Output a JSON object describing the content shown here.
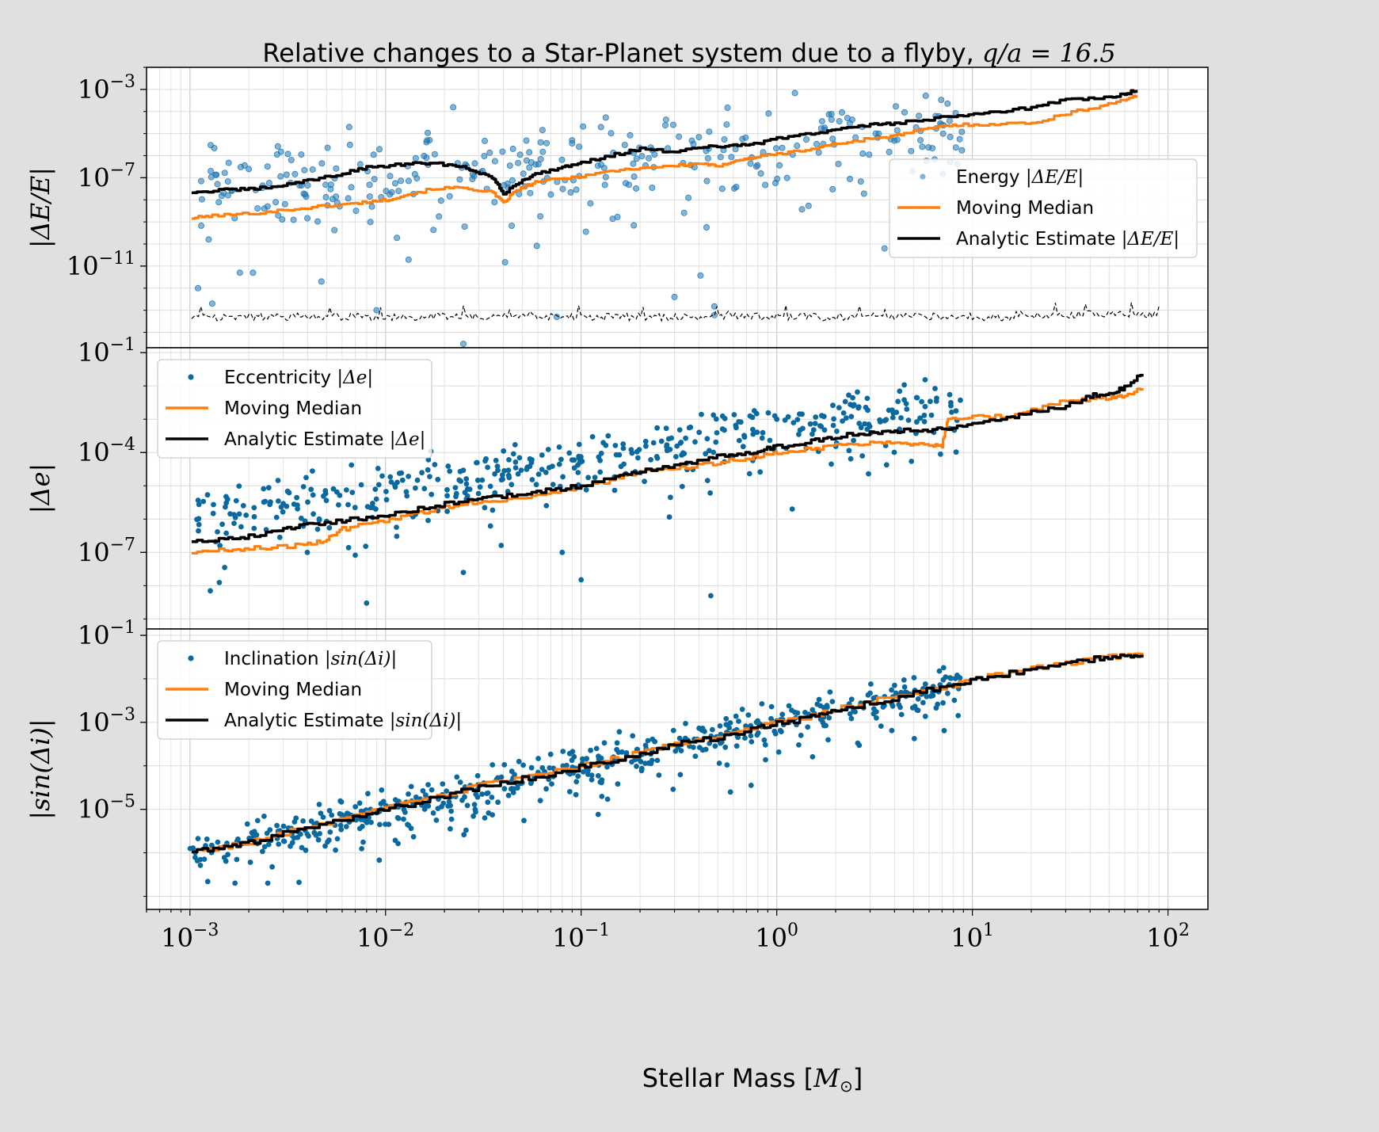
{
  "figure": {
    "title_text": "Relative changes to a Star-Planet system due to a flyby, ",
    "title_math": "q/a = 16.5",
    "xlabel_text": "Stellar Mass [",
    "xlabel_math": "M",
    "xlabel_sub": "⊙",
    "xlabel_end": "]",
    "xtick_labels": [
      {
        "base": "10",
        "exp": "−3"
      },
      {
        "base": "10",
        "exp": "−2"
      },
      {
        "base": "10",
        "exp": "−1"
      },
      {
        "base": "10",
        "exp": "0"
      },
      {
        "base": "10",
        "exp": "1"
      },
      {
        "base": "10",
        "exp": "2"
      }
    ],
    "colors": {
      "points": "#1f77b4",
      "points_dark": "#0a6aa0",
      "median": "#ff7f0e",
      "analytic": "#000000",
      "background": "#e0e0e0",
      "axes": "#ffffff",
      "grid": "#d0d0d0"
    }
  },
  "chart_data": [
    {
      "type": "scatter",
      "panel": "energy",
      "xscale": "log",
      "yscale": "log",
      "xlim": [
        0.0006,
        160
      ],
      "ylim": [
        2e-15,
        0.01
      ],
      "grid": true,
      "ylabel": "|ΔE/E|",
      "ytick_labels": [
        {
          "base": "10",
          "exp": "−3",
          "value": 0.001
        },
        {
          "base": "10",
          "exp": "−7",
          "value": 1e-07
        },
        {
          "base": "10",
          "exp": "−11",
          "value": 1e-11
        }
      ],
      "legend_placement": "center-right",
      "legend": [
        {
          "text": "Energy ",
          "math": "|ΔE/E|",
          "kind": "points"
        },
        {
          "text": "Moving Median",
          "math": "",
          "kind": "median"
        },
        {
          "text": "Analytic Estimate ",
          "math": "|ΔE/E|",
          "kind": "analytic"
        }
      ],
      "series": {
        "scatter": {
          "intercept": -5.5,
          "slope": 0.62,
          "spread": 1.6,
          "seed": 7,
          "count": 330,
          "alpha": 0.55,
          "outliers": [
            [
              0.0011,
              1e-12
            ],
            [
              0.0013,
              2e-13
            ],
            [
              0.0021,
              5e-12
            ],
            [
              0.0047,
              2e-12
            ],
            [
              0.009,
              1e-13
            ],
            [
              0.025,
              3e-15
            ],
            [
              0.075,
              5e-14
            ],
            [
              0.3,
              4e-13
            ],
            [
              0.48,
              1.5e-13
            ],
            [
              0.48,
              6e-14
            ],
            [
              0.0018,
              5e-12
            ]
          ]
        },
        "median": {
          "x": [
            0.00102,
            0.0013,
            0.002,
            0.003,
            0.0045,
            0.006,
            0.008,
            0.01,
            0.013,
            0.018,
            0.025,
            0.035,
            0.04,
            0.045,
            0.05,
            0.06,
            0.08,
            0.1,
            0.14,
            0.2,
            0.3,
            0.42,
            0.5,
            0.6,
            0.7,
            0.8,
            1,
            1.5,
            2,
            3,
            4,
            5,
            7,
            9,
            13,
            20,
            30,
            45,
            60,
            70
          ],
          "y": [
            1.5e-09,
            1.9e-09,
            2.4e-09,
            3.4e-09,
            5e-09,
            6e-09,
            8e-09,
            1e-08,
            1.8e-08,
            3.3e-08,
            3.5e-08,
            2.2e-08,
            7e-09,
            2.1e-08,
            3.5e-08,
            7e-08,
            9e-08,
            1.2e-07,
            2e-07,
            2.8e-07,
            3.5e-07,
            4.5e-07,
            3e-07,
            6e-07,
            7e-07,
            9e-07,
            1.2e-06,
            2e-06,
            3.5e-06,
            6e-06,
            8e-06,
            1.2e-05,
            2.2e-05,
            2.5e-05,
            2.7e-05,
            3e-05,
            8e-05,
            0.00018,
            0.00035,
            0.0005
          ]
        },
        "analytic": {
          "x": [
            0.00102,
            0.0015,
            0.002,
            0.003,
            0.004,
            0.006,
            0.008,
            0.012,
            0.016,
            0.022,
            0.028,
            0.035,
            0.04,
            0.05,
            0.06,
            0.08,
            0.1,
            0.14,
            0.2,
            0.3,
            0.45,
            0.6,
            0.8,
            1,
            1.5,
            2,
            3,
            4,
            6,
            9,
            13,
            20,
            30,
            45,
            60,
            70
          ],
          "y": [
            2.2e-08,
            2.8e-08,
            3e-08,
            4.5e-08,
            8e-08,
            1.5e-07,
            3e-07,
            4e-07,
            4.5e-07,
            3.8e-07,
            2.2e-07,
            1e-07,
            2e-08,
            8e-08,
            1.6e-07,
            3e-07,
            5e-07,
            1e-06,
            2e-06,
            1.5e-06,
            2.5e-06,
            2.8e-06,
            3.5e-06,
            6e-06,
            1e-05,
            1.5e-05,
            2.5e-05,
            3e-05,
            4.5e-05,
            7e-05,
            0.0001,
            0.00015,
            0.00035,
            0.0004,
            0.0006,
            0.001
          ]
        },
        "noise_floor": {
          "value": 5e-14,
          "x_start": 0.00102,
          "x_end": 90
        }
      }
    },
    {
      "type": "scatter",
      "panel": "eccentricity",
      "xscale": "log",
      "yscale": "log",
      "xlim": [
        0.0006,
        160
      ],
      "ylim": [
        5e-10,
        0.14
      ],
      "grid": true,
      "ylabel": "|Δe|",
      "ytick_labels": [
        {
          "base": "10",
          "exp": "−1",
          "value": 0.1
        },
        {
          "base": "10",
          "exp": "−4",
          "value": 0.0001
        },
        {
          "base": "10",
          "exp": "−7",
          "value": 1e-07
        }
      ],
      "legend_placement": "upper-left",
      "legend": [
        {
          "text": "Eccentricity ",
          "math": "|Δe|",
          "kind": "points"
        },
        {
          "text": "Moving Median",
          "math": "",
          "kind": "median"
        },
        {
          "text": "Analytic Estimate ",
          "math": "|Δe|",
          "kind": "analytic"
        }
      ],
      "series": {
        "scatter": {
          "intercept": -3.3,
          "slope": 0.92,
          "spread": 0.75,
          "seed": 19,
          "count": 440,
          "alpha": 1,
          "outliers": [
            [
              0.008,
              3e-09
            ],
            [
              0.025,
              2.5e-08
            ],
            [
              0.1,
              1.5e-08
            ],
            [
              0.46,
              5e-09
            ],
            [
              1.2,
              2e-06
            ],
            [
              0.08,
              1e-07
            ]
          ]
        },
        "median": {
          "x": [
            0.00102,
            0.0015,
            0.002,
            0.003,
            0.004,
            0.005,
            0.006,
            0.008,
            0.012,
            0.018,
            0.025,
            0.035,
            0.05,
            0.07,
            0.1,
            0.15,
            0.2,
            0.3,
            0.45,
            0.6,
            0.8,
            1,
            1.5,
            2,
            3,
            4,
            5,
            6,
            7,
            7.5,
            10,
            15,
            20,
            30,
            40,
            50,
            60,
            75
          ],
          "y": [
            1e-07,
            1.2e-07,
            1.3e-07,
            1.5e-07,
            1.7e-07,
            2.5e-07,
            5e-07,
            7e-07,
            1.2e-06,
            2e-06,
            3e-06,
            3.5e-06,
            4.5e-06,
            6e-06,
            9e-06,
            1.6e-05,
            2.5e-05,
            3.2e-05,
            4.5e-05,
            6e-05,
            7.5e-05,
            0.0001,
            0.00013,
            0.00016,
            0.0002,
            0.00022,
            0.00018,
            0.00017,
            0.00016,
            0.0011,
            0.0012,
            0.0012,
            0.002,
            0.0035,
            0.004,
            0.0045,
            0.005,
            0.01
          ]
        },
        "analytic": {
          "x": [
            0.00102,
            0.0015,
            0.002,
            0.003,
            0.004,
            0.006,
            0.008,
            0.012,
            0.018,
            0.025,
            0.035,
            0.05,
            0.07,
            0.1,
            0.15,
            0.2,
            0.3,
            0.45,
            0.6,
            0.8,
            1,
            1.5,
            2,
            3,
            4,
            5,
            7,
            10,
            15,
            20,
            30,
            40,
            50,
            60,
            75
          ],
          "y": [
            2.2e-07,
            2.6e-07,
            3e-07,
            5e-07,
            7e-07,
            9e-07,
            1.1e-06,
            1.6e-06,
            2.5e-06,
            3.6e-06,
            4.5e-06,
            6e-06,
            7.5e-06,
            1e-05,
            1.8e-05,
            2.8e-05,
            4e-05,
            7e-05,
            9e-05,
            0.00011,
            0.00015,
            0.00022,
            0.0003,
            0.0004,
            0.00045,
            0.00047,
            0.0005,
            0.0008,
            0.0011,
            0.0016,
            0.0025,
            0.005,
            0.006,
            0.009,
            0.025
          ]
        }
      }
    },
    {
      "type": "scatter",
      "panel": "inclination",
      "xscale": "log",
      "yscale": "log",
      "xlim": [
        0.0006,
        160
      ],
      "ylim": [
        5e-08,
        0.14
      ],
      "grid": true,
      "ylabel": "|sin(Δi)|",
      "ytick_labels": [
        {
          "base": "10",
          "exp": "−1",
          "value": 0.1
        },
        {
          "base": "10",
          "exp": "−3",
          "value": 0.001
        },
        {
          "base": "10",
          "exp": "−5",
          "value": 1e-05
        }
      ],
      "legend_placement": "upper-left",
      "legend": [
        {
          "text": "Inclination ",
          "math": "|sin(Δi)|",
          "kind": "points"
        },
        {
          "text": "Moving Median",
          "math": "",
          "kind": "median"
        },
        {
          "text": "Analytic Estimate ",
          "math": "|sin(Δi)|",
          "kind": "analytic"
        }
      ],
      "series": {
        "scatter": {
          "intercept": -3.0,
          "slope": 1.0,
          "spread": 0.4,
          "seed": 31,
          "count": 560,
          "alpha": 1,
          "outliers": [
            [
              0.0025,
              2e-07
            ],
            [
              0.0017,
              2e-07
            ],
            [
              0.58,
              2.5e-05
            ]
          ]
        },
        "median": {
          "x": [
            0.00102,
            0.0015,
            0.002,
            0.003,
            0.005,
            0.008,
            0.012,
            0.02,
            0.03,
            0.05,
            0.08,
            0.12,
            0.2,
            0.3,
            0.5,
            0.8,
            1,
            1.5,
            2,
            3,
            5,
            8,
            12,
            20,
            30,
            45,
            60,
            75
          ],
          "y": [
            1.1e-06,
            1.4e-06,
            1.7e-06,
            2.8e-06,
            5e-06,
            8e-06,
            1.3e-05,
            2.2e-05,
            3.5e-05,
            5e-05,
            8e-05,
            0.00012,
            0.0002,
            0.00032,
            0.0005,
            0.0008,
            0.001,
            0.0014,
            0.002,
            0.003,
            0.005,
            0.0075,
            0.012,
            0.018,
            0.022,
            0.03,
            0.035,
            0.034
          ]
        },
        "analytic": {
          "x": [
            0.00102,
            0.0015,
            0.002,
            0.003,
            0.005,
            0.008,
            0.012,
            0.02,
            0.03,
            0.05,
            0.08,
            0.12,
            0.2,
            0.3,
            0.5,
            0.8,
            1,
            1.5,
            2,
            3,
            5,
            8,
            12,
            20,
            30,
            45,
            60,
            75
          ],
          "y": [
            1.1e-06,
            1.3e-06,
            1.7e-06,
            2.7e-06,
            4.5e-06,
            7.5e-06,
            1.2e-05,
            2e-05,
            3.3e-05,
            5e-05,
            7.5e-05,
            0.00011,
            0.00018,
            0.0003,
            0.00045,
            0.00075,
            0.00095,
            0.0013,
            0.0019,
            0.0028,
            0.0047,
            0.007,
            0.011,
            0.017,
            0.022,
            0.03,
            0.035,
            0.033
          ]
        }
      }
    }
  ]
}
